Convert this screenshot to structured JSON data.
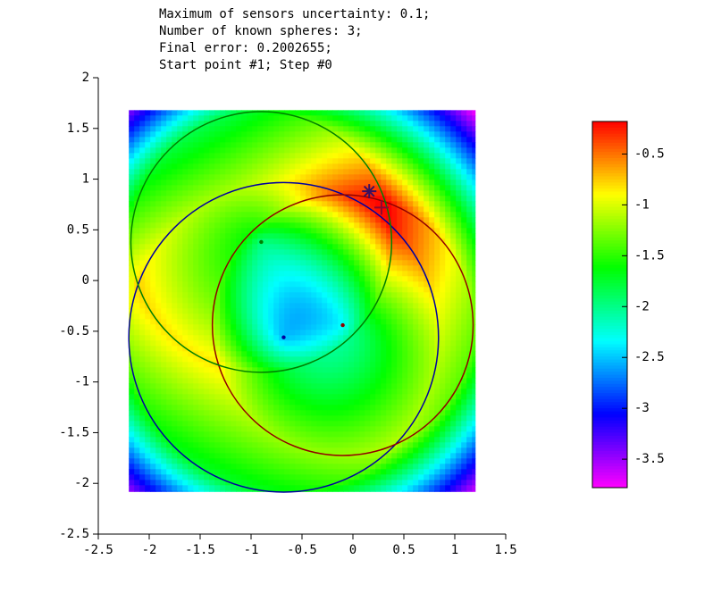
{
  "header": {
    "lines": [
      "Maximum of sensors uncertainty: 0.1;",
      "Number of known spheres: 3;",
      "Final error: 0.2002655;",
      "Start point #1; Step #0"
    ]
  },
  "chart_data": {
    "type": "sphere-field",
    "xlim": [
      -2.5,
      1.5
    ],
    "xticks": [
      -2.5,
      -2,
      -1.5,
      -1,
      -0.5,
      0,
      0.5,
      1,
      1.5
    ],
    "ylim": [
      -2.5,
      2
    ],
    "yticks": [
      -2.5,
      -2,
      -1.5,
      -1,
      -0.5,
      0,
      0.5,
      1,
      1.5,
      2
    ],
    "field_x": [
      -2.2,
      1.2
    ],
    "field_y": [
      -2.08,
      1.68
    ],
    "circles": [
      {
        "color": "#0000a0",
        "center": [
          -0.68,
          -0.56
        ],
        "radius": 1.52
      },
      {
        "color": "#900000",
        "center": [
          -0.1,
          -0.44
        ],
        "radius": 1.28
      },
      {
        "color": "#008000",
        "center": [
          -0.9,
          0.38
        ],
        "radius": 1.28
      }
    ],
    "points": [
      {
        "marker": "asterisk",
        "color": "#3a1060",
        "x": 0.16,
        "y": 0.88
      },
      {
        "marker": "plus",
        "color": "#8a0a30",
        "x": 0.28,
        "y": 0.72
      }
    ],
    "colorbar": {
      "clim": [
        -3.78,
        -0.18
      ],
      "ticks": [
        -0.5,
        -1,
        -1.5,
        -2,
        -2.5,
        -3,
        -3.5
      ]
    }
  }
}
